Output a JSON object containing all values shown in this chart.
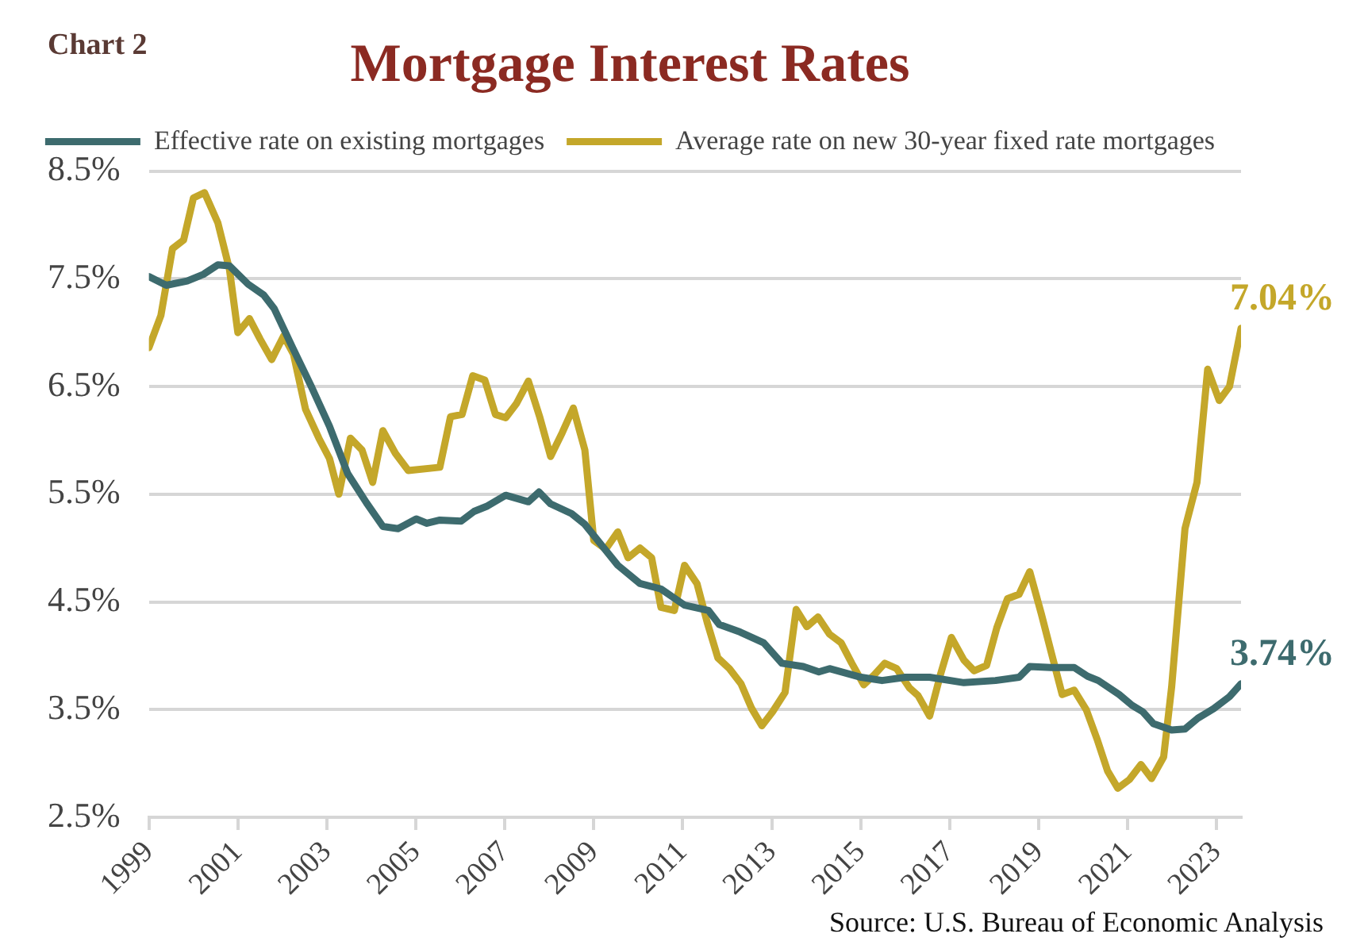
{
  "chart_data": {
    "type": "line",
    "title": "Mortgage Interest Rates",
    "subtitle": "Chart 2",
    "annotations": [
      {
        "text": "7.04%",
        "x": 2023.55,
        "y": 7.04
      },
      {
        "text": "3.74%",
        "x": 2023.55,
        "y": 3.74
      },
      "Source: U.S. Bureau of Economic Analysis"
    ],
    "series": [
      {
        "name": "Effective rate on existing mortgages",
        "color": "#3d6b6e",
        "x": [
          1999.0,
          1999.39,
          1999.86,
          2000.22,
          2000.55,
          2000.81,
          2001.23,
          2001.58,
          2001.82,
          2002.23,
          2002.65,
          2003.06,
          2003.47,
          2003.89,
          2004.26,
          2004.6,
          2005.01,
          2005.25,
          2005.54,
          2006.02,
          2006.31,
          2006.61,
          2007.02,
          2007.53,
          2007.77,
          2008.03,
          2008.5,
          2008.8,
          2009.15,
          2009.54,
          2010.04,
          2010.51,
          2011.04,
          2011.58,
          2011.82,
          2012.29,
          2012.82,
          2013.23,
          2013.71,
          2014.06,
          2014.3,
          2015.01,
          2015.48,
          2016.01,
          2016.55,
          2017.32,
          2018.03,
          2018.56,
          2018.8,
          2019.27,
          2019.8,
          2020.1,
          2020.34,
          2020.81,
          2021.1,
          2021.34,
          2021.58,
          2021.99,
          2022.29,
          2022.58,
          2022.94,
          2023.29,
          2023.55
        ],
        "values": [
          7.52,
          7.44,
          7.48,
          7.54,
          7.63,
          7.62,
          7.45,
          7.35,
          7.22,
          6.86,
          6.5,
          6.13,
          5.69,
          5.42,
          5.2,
          5.18,
          5.27,
          5.23,
          5.26,
          5.25,
          5.34,
          5.39,
          5.49,
          5.43,
          5.52,
          5.41,
          5.32,
          5.22,
          5.04,
          4.84,
          4.67,
          4.62,
          4.47,
          4.42,
          4.29,
          4.22,
          4.12,
          3.93,
          3.9,
          3.85,
          3.88,
          3.8,
          3.77,
          3.8,
          3.8,
          3.75,
          3.77,
          3.8,
          3.9,
          3.89,
          3.89,
          3.81,
          3.77,
          3.64,
          3.54,
          3.48,
          3.37,
          3.31,
          3.32,
          3.42,
          3.51,
          3.62,
          3.74
        ]
      },
      {
        "name": "Average rate on new 30-year fixed rate mortgages",
        "color": "#c4a72a",
        "x": [
          1999.0,
          1999.27,
          1999.53,
          1999.78,
          2000.0,
          2000.25,
          2000.55,
          2000.81,
          2001.0,
          2001.26,
          2001.5,
          2001.76,
          2002.03,
          2002.25,
          2002.52,
          2002.82,
          2003.06,
          2003.27,
          2003.53,
          2003.79,
          2004.03,
          2004.26,
          2004.54,
          2004.83,
          2005.54,
          2005.78,
          2006.04,
          2006.28,
          2006.55,
          2006.79,
          2007.02,
          2007.26,
          2007.53,
          2007.79,
          2008.03,
          2008.29,
          2008.54,
          2008.8,
          2009.0,
          2009.27,
          2009.54,
          2009.77,
          2010.04,
          2010.3,
          2010.51,
          2010.81,
          2011.04,
          2011.32,
          2011.55,
          2011.79,
          2012.05,
          2012.31,
          2012.55,
          2012.78,
          2013.02,
          2013.3,
          2013.55,
          2013.79,
          2014.04,
          2014.3,
          2014.56,
          2014.8,
          2015.07,
          2015.3,
          2015.54,
          2015.81,
          2016.1,
          2016.29,
          2016.55,
          2016.79,
          2017.04,
          2017.32,
          2017.55,
          2017.83,
          2018.06,
          2018.3,
          2018.56,
          2018.8,
          2019.06,
          2019.29,
          2019.53,
          2019.8,
          2020.07,
          2020.31,
          2020.55,
          2020.78,
          2021.04,
          2021.3,
          2021.54,
          2021.81,
          2021.99,
          2022.29,
          2022.56,
          2022.8,
          2023.06,
          2023.29,
          2023.55
        ],
        "values": [
          6.86,
          7.16,
          7.78,
          7.86,
          8.25,
          8.3,
          8.02,
          7.59,
          7.0,
          7.13,
          6.94,
          6.75,
          6.97,
          6.8,
          6.29,
          6.02,
          5.83,
          5.5,
          6.02,
          5.91,
          5.61,
          6.09,
          5.88,
          5.72,
          5.75,
          6.22,
          6.24,
          6.6,
          6.56,
          6.24,
          6.21,
          6.34,
          6.55,
          6.21,
          5.85,
          6.07,
          6.3,
          5.91,
          5.07,
          4.99,
          5.15,
          4.91,
          5.0,
          4.91,
          4.45,
          4.42,
          4.84,
          4.67,
          4.31,
          3.98,
          3.88,
          3.74,
          3.51,
          3.35,
          3.48,
          3.66,
          4.43,
          4.27,
          4.36,
          4.2,
          4.12,
          3.93,
          3.73,
          3.82,
          3.93,
          3.88,
          3.7,
          3.63,
          3.44,
          3.82,
          4.17,
          3.96,
          3.86,
          3.91,
          4.26,
          4.53,
          4.57,
          4.78,
          4.39,
          4.02,
          3.64,
          3.68,
          3.5,
          3.23,
          2.93,
          2.77,
          2.85,
          2.99,
          2.86,
          3.06,
          3.71,
          5.18,
          5.61,
          6.66,
          6.37,
          6.5,
          7.04
        ]
      }
    ],
    "xlim": [
      1999,
      2023.55
    ],
    "xticks": [
      1999,
      2001,
      2003,
      2005,
      2007,
      2009,
      2011,
      2013,
      2015,
      2017,
      2019,
      2021,
      2023
    ],
    "ylim": [
      2.5,
      8.5
    ],
    "yticks": [
      {
        "value": 2.5,
        "label": "2.5%"
      },
      {
        "value": 3.5,
        "label": "3.5%"
      },
      {
        "value": 4.5,
        "label": "4.5%"
      },
      {
        "value": 5.5,
        "label": "5.5%"
      },
      {
        "value": 6.5,
        "label": "6.5%"
      },
      {
        "value": 7.5,
        "label": "7.5%"
      },
      {
        "value": 8.5,
        "label": "8.5%"
      }
    ],
    "grid": "y",
    "legend": "top",
    "marker": "none",
    "line_style": "solid"
  }
}
